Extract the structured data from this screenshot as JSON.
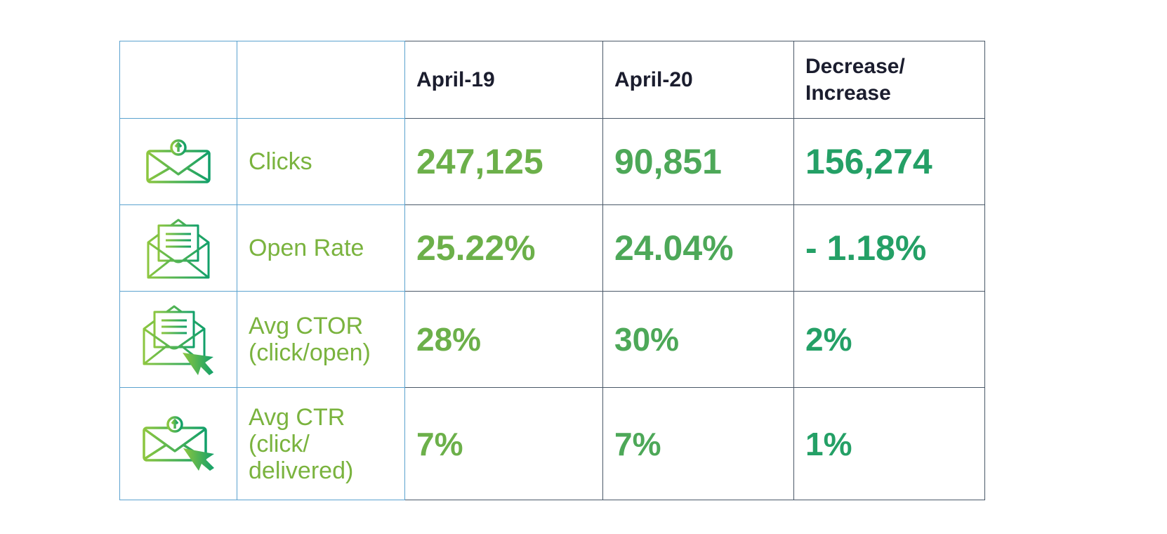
{
  "headers": [
    "",
    "",
    "April-19",
    "April-20",
    "Decrease/\nIncrease"
  ],
  "header_lines": {
    "change_line1": "Decrease/",
    "change_line2": "Increase"
  },
  "rows": [
    {
      "icon": "envelope-upload-icon",
      "label": "Clicks",
      "april_19": "247,125",
      "april_20": "90,851",
      "change": "156,274"
    },
    {
      "icon": "open-envelope-letter-icon",
      "label": "Open Rate",
      "april_19": "25.22%",
      "april_20": "24.04%",
      "change": "- 1.18%"
    },
    {
      "icon": "open-envelope-cursor-icon",
      "label": "Avg CTOR",
      "label_sub": "(click/open)",
      "april_19": "28%",
      "april_20": "30%",
      "change": "2%"
    },
    {
      "icon": "envelope-upload-cursor-icon",
      "label": "Avg CTR",
      "label_sub": "(click/",
      "label_sub2": "delivered)",
      "april_19": "7%",
      "april_20": "7%",
      "change": "1%"
    }
  ],
  "colors": {
    "label": "#7ab33e",
    "april_19": "#6cb04a",
    "april_20": "#4da858",
    "change": "#24a066",
    "header": "#1b1d2e",
    "icon_gradient": [
      "#8cc63f",
      "#12a06a"
    ]
  }
}
